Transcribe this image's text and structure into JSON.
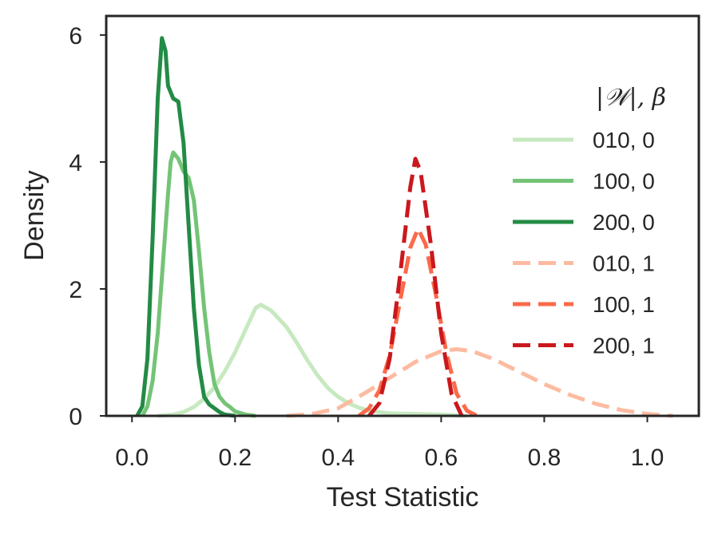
{
  "chart_data": {
    "type": "line",
    "xlabel": "Test Statistic",
    "ylabel": "Density",
    "xlim": [
      -0.05,
      1.1
    ],
    "ylim": [
      0,
      6.3
    ],
    "xticks": [
      0.0,
      0.2,
      0.4,
      0.6,
      0.8,
      1.0
    ],
    "xtick_labels": [
      "0.0",
      "0.2",
      "0.4",
      "0.6",
      "0.8",
      "1.0"
    ],
    "yticks": [
      0,
      2,
      4,
      6
    ],
    "ytick_labels": [
      "0",
      "2",
      "4",
      "6"
    ],
    "grid": false,
    "legend": {
      "title": "|𝒲|, β",
      "placement": "right"
    },
    "series": [
      {
        "name": "010, 0",
        "color": "#c7e9c0",
        "dashed": false,
        "points": [
          [
            0.05,
            0.0
          ],
          [
            0.08,
            0.02
          ],
          [
            0.1,
            0.06
          ],
          [
            0.12,
            0.14
          ],
          [
            0.14,
            0.27
          ],
          [
            0.16,
            0.45
          ],
          [
            0.18,
            0.7
          ],
          [
            0.2,
            1.0
          ],
          [
            0.22,
            1.35
          ],
          [
            0.24,
            1.7
          ],
          [
            0.25,
            1.75
          ],
          [
            0.27,
            1.66
          ],
          [
            0.3,
            1.4
          ],
          [
            0.32,
            1.15
          ],
          [
            0.34,
            0.88
          ],
          [
            0.36,
            0.64
          ],
          [
            0.38,
            0.44
          ],
          [
            0.4,
            0.3
          ],
          [
            0.42,
            0.2
          ],
          [
            0.44,
            0.13
          ],
          [
            0.46,
            0.08
          ],
          [
            0.5,
            0.04
          ],
          [
            0.55,
            0.03
          ],
          [
            0.6,
            0.02
          ],
          [
            0.65,
            0.0
          ]
        ]
      },
      {
        "name": "100, 0",
        "color": "#74c476",
        "dashed": false,
        "points": [
          [
            0.02,
            0.0
          ],
          [
            0.03,
            0.15
          ],
          [
            0.04,
            0.55
          ],
          [
            0.05,
            1.3
          ],
          [
            0.06,
            2.4
          ],
          [
            0.07,
            3.5
          ],
          [
            0.075,
            4.0
          ],
          [
            0.08,
            4.15
          ],
          [
            0.09,
            4.05
          ],
          [
            0.1,
            3.85
          ],
          [
            0.11,
            3.75
          ],
          [
            0.12,
            3.4
          ],
          [
            0.13,
            2.6
          ],
          [
            0.14,
            1.7
          ],
          [
            0.15,
            1.0
          ],
          [
            0.16,
            0.5
          ],
          [
            0.17,
            0.3
          ],
          [
            0.18,
            0.2
          ],
          [
            0.19,
            0.14
          ],
          [
            0.2,
            0.07
          ],
          [
            0.22,
            0.02
          ],
          [
            0.24,
            0.0
          ]
        ]
      },
      {
        "name": "200, 0",
        "color": "#238b45",
        "dashed": false,
        "points": [
          [
            0.01,
            0.0
          ],
          [
            0.02,
            0.15
          ],
          [
            0.03,
            0.9
          ],
          [
            0.04,
            2.8
          ],
          [
            0.05,
            5.0
          ],
          [
            0.058,
            5.95
          ],
          [
            0.065,
            5.75
          ],
          [
            0.07,
            5.2
          ],
          [
            0.08,
            5.0
          ],
          [
            0.09,
            4.95
          ],
          [
            0.1,
            4.3
          ],
          [
            0.11,
            3.0
          ],
          [
            0.12,
            1.7
          ],
          [
            0.13,
            0.8
          ],
          [
            0.14,
            0.3
          ],
          [
            0.15,
            0.18
          ],
          [
            0.16,
            0.12
          ],
          [
            0.17,
            0.06
          ],
          [
            0.18,
            0.02
          ],
          [
            0.2,
            0.0
          ]
        ]
      },
      {
        "name": "010, 1",
        "color": "#fcbba1",
        "dashed": true,
        "points": [
          [
            0.3,
            0.0
          ],
          [
            0.35,
            0.03
          ],
          [
            0.4,
            0.12
          ],
          [
            0.45,
            0.35
          ],
          [
            0.5,
            0.6
          ],
          [
            0.55,
            0.85
          ],
          [
            0.6,
            1.02
          ],
          [
            0.63,
            1.05
          ],
          [
            0.66,
            1.02
          ],
          [
            0.7,
            0.9
          ],
          [
            0.75,
            0.7
          ],
          [
            0.8,
            0.5
          ],
          [
            0.85,
            0.33
          ],
          [
            0.9,
            0.19
          ],
          [
            0.95,
            0.09
          ],
          [
            1.0,
            0.03
          ],
          [
            1.05,
            0.0
          ]
        ]
      },
      {
        "name": "100, 1",
        "color": "#fb6a4a",
        "dashed": true,
        "points": [
          [
            0.44,
            0.0
          ],
          [
            0.46,
            0.12
          ],
          [
            0.48,
            0.4
          ],
          [
            0.5,
            0.95
          ],
          [
            0.52,
            1.8
          ],
          [
            0.54,
            2.65
          ],
          [
            0.555,
            2.95
          ],
          [
            0.57,
            2.7
          ],
          [
            0.59,
            1.9
          ],
          [
            0.61,
            1.0
          ],
          [
            0.63,
            0.35
          ],
          [
            0.65,
            0.08
          ],
          [
            0.67,
            0.0
          ]
        ]
      },
      {
        "name": "200, 1",
        "color": "#cb181d",
        "dashed": true,
        "points": [
          [
            0.46,
            0.0
          ],
          [
            0.48,
            0.2
          ],
          [
            0.5,
            0.9
          ],
          [
            0.52,
            2.2
          ],
          [
            0.54,
            3.6
          ],
          [
            0.55,
            4.05
          ],
          [
            0.56,
            3.85
          ],
          [
            0.58,
            2.7
          ],
          [
            0.6,
            1.3
          ],
          [
            0.62,
            0.35
          ],
          [
            0.64,
            0.0
          ]
        ]
      }
    ]
  }
}
